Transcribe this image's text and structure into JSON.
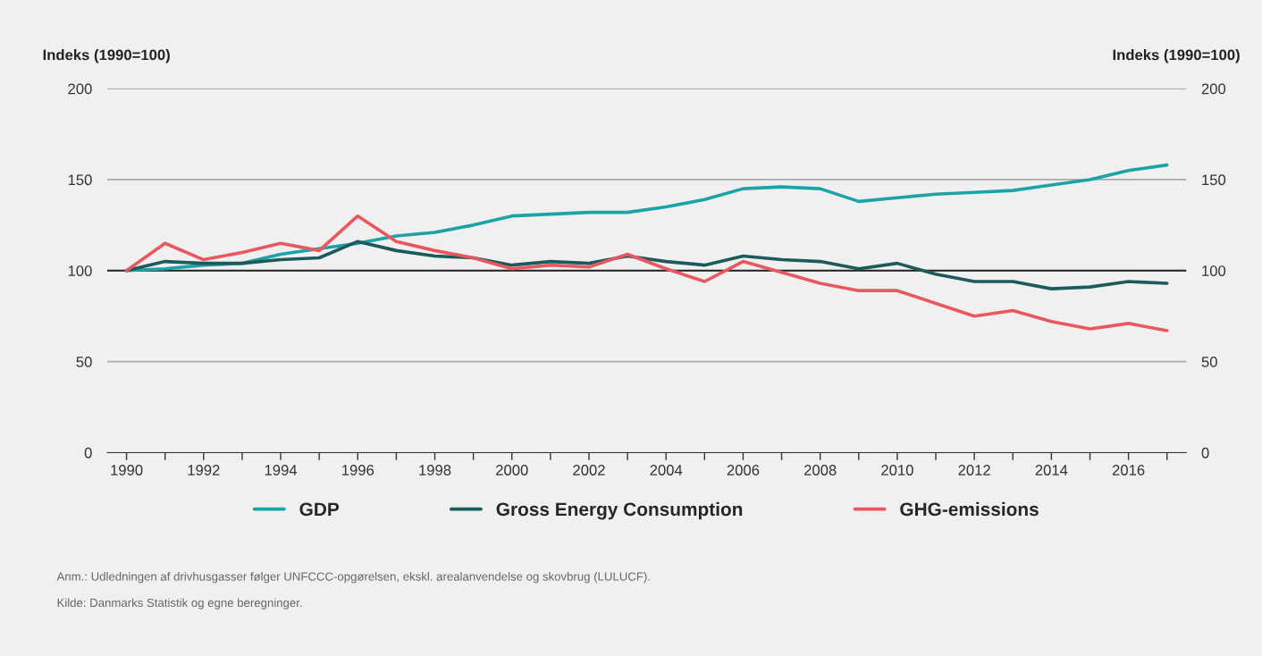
{
  "chart_data": {
    "type": "line",
    "ylabel": "Indeks (1990=100)",
    "y2label": "Indeks (1990=100)",
    "x": [
      1990,
      1991,
      1992,
      1993,
      1994,
      1995,
      1996,
      1997,
      1998,
      1999,
      2000,
      2001,
      2002,
      2003,
      2004,
      2005,
      2006,
      2007,
      2008,
      2009,
      2010,
      2011,
      2012,
      2013,
      2014,
      2015,
      2016,
      2017
    ],
    "series": [
      {
        "name": "GDP",
        "color": "#1ba3a8",
        "values": [
          100,
          101,
          103,
          104,
          109,
          112,
          115,
          119,
          121,
          125,
          130,
          131,
          132,
          132,
          135,
          139,
          145,
          146,
          145,
          138,
          140,
          142,
          143,
          144,
          147,
          150,
          155,
          158
        ]
      },
      {
        "name": "Gross Energy Consumption",
        "color": "#1d5a5c",
        "values": [
          100,
          105,
          104,
          104,
          106,
          107,
          116,
          111,
          108,
          107,
          103,
          105,
          104,
          108,
          105,
          103,
          108,
          106,
          105,
          101,
          104,
          98,
          94,
          94,
          90,
          91,
          94,
          93
        ]
      },
      {
        "name": "GHG-emissions",
        "color": "#e8585e",
        "values": [
          100,
          115,
          106,
          110,
          115,
          111,
          130,
          116,
          111,
          107,
          101,
          103,
          102,
          109,
          101,
          94,
          105,
          99,
          93,
          89,
          89,
          82,
          75,
          78,
          72,
          68,
          71,
          67
        ]
      }
    ],
    "xlim": [
      1989.5,
      2017.5
    ],
    "xticks": [
      1990,
      {
        "value": 1991,
        "label": null
      },
      1992,
      {
        "value": 1993,
        "label": null
      },
      1994,
      {
        "value": 1995,
        "label": null
      },
      1996,
      {
        "value": 1997,
        "label": null
      },
      1998,
      {
        "value": 1999,
        "label": null
      },
      2000,
      {
        "value": 2001,
        "label": null
      },
      2002,
      {
        "value": 2003,
        "label": null
      },
      2004,
      {
        "value": 2005,
        "label": null
      },
      2006,
      {
        "value": 2007,
        "label": null
      },
      2008,
      {
        "value": 2009,
        "label": null
      },
      2010,
      {
        "value": 2011,
        "label": null
      },
      2012,
      {
        "value": 2013,
        "label": null
      },
      2014,
      {
        "value": 2015,
        "label": null
      },
      2016,
      {
        "value": 2017,
        "label": null
      }
    ],
    "ylim": [
      0,
      200
    ],
    "yticks": [
      0,
      50,
      100,
      150,
      200
    ],
    "y2lim": [
      0,
      200
    ],
    "y2ticks": [
      0,
      50,
      100,
      150,
      200
    ],
    "ref_lines": [
      {
        "axis": "y",
        "value": 100,
        "color": "#222222"
      }
    ],
    "grid": "y",
    "legend": "bottom",
    "marker": "none",
    "line_style": "solid",
    "annotations": [
      "Anm.: Udledningen af drivhusgasser følger UNFCCC-opgørelsen, ekskl. arealanvendelse og skovbrug (LULUCF).",
      "Kilde: Danmarks Statistik og egne beregninger."
    ]
  }
}
